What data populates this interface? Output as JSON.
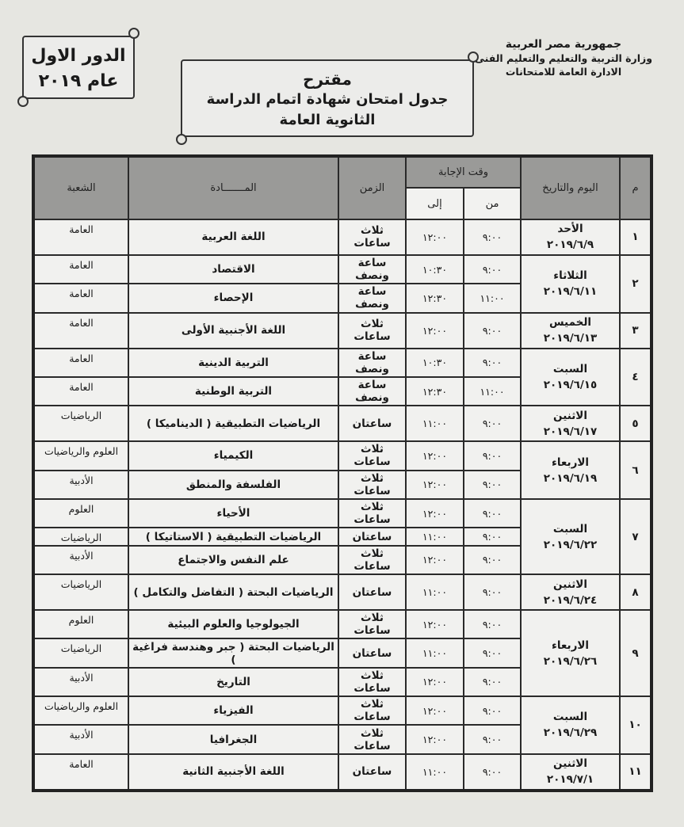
{
  "header": {
    "org_lines": [
      "جمهورية مصر العربية",
      "وزارة التربية والتعليم والتعليم الفنى",
      "الادارة العامة للامتحانات"
    ],
    "title_top": "مقترح",
    "title_line1": "جدول امتحان شهادة اتمام الدراسة",
    "title_line2": "الثانوية العامة",
    "session_line1": "الدور الاول",
    "session_line2": "عام ٢٠١٩"
  },
  "table_headers": {
    "num": "م",
    "day_date": "اليوم والتاريخ",
    "answer_time": "وقت الإجابة",
    "from": "من",
    "to": "إلى",
    "duration": "الزمن",
    "subject": "المـــــــادة",
    "branch": "الشعبة"
  },
  "days": [
    {
      "num": "١",
      "day": "الأحد",
      "date": "٢٠١٩/٦/٩",
      "rows": [
        {
          "from": "٩:٠٠",
          "to": "١٢:٠٠",
          "duration": "ثلاث ساعات",
          "subject": "اللغة العربية",
          "branch": "العامة"
        }
      ]
    },
    {
      "num": "٢",
      "day": "الثلاثاء",
      "date": "٢٠١٩/٦/١١",
      "rows": [
        {
          "from": "٩:٠٠",
          "to": "١٠:٣٠",
          "duration": "ساعة ونصف",
          "subject": "الاقتصاد",
          "branch": "العامة"
        },
        {
          "from": "١١:٠٠",
          "to": "١٢:٣٠",
          "duration": "ساعة ونصف",
          "subject": "الإحصاء",
          "branch": "العامة"
        }
      ]
    },
    {
      "num": "٣",
      "day": "الخميس",
      "date": "٢٠١٩/٦/١٣",
      "rows": [
        {
          "from": "٩:٠٠",
          "to": "١٢:٠٠",
          "duration": "ثلاث ساعات",
          "subject": "اللغة الأجنبية الأولى",
          "branch": "العامة"
        }
      ]
    },
    {
      "num": "٤",
      "day": "السبت",
      "date": "٢٠١٩/٦/١٥",
      "rows": [
        {
          "from": "٩:٠٠",
          "to": "١٠:٣٠",
          "duration": "ساعة ونصف",
          "subject": "التربية الدينية",
          "branch": "العامة"
        },
        {
          "from": "١١:٠٠",
          "to": "١٢:٣٠",
          "duration": "ساعة ونصف",
          "subject": "التربية الوطنية",
          "branch": "العامة"
        }
      ]
    },
    {
      "num": "٥",
      "day": "الاثنين",
      "date": "٢٠١٩/٦/١٧",
      "rows": [
        {
          "from": "٩:٠٠",
          "to": "١١:٠٠",
          "duration": "ساعتان",
          "subject": "الرياضيات التطبيقية ( الديناميكا )",
          "branch": "الرياضيات"
        }
      ]
    },
    {
      "num": "٦",
      "day": "الاربعاء",
      "date": "٢٠١٩/٦/١٩",
      "rows": [
        {
          "from": "٩:٠٠",
          "to": "١٢:٠٠",
          "duration": "ثلاث ساعات",
          "subject": "الكيمياء",
          "branch": "العلوم والرياضيات"
        },
        {
          "from": "٩:٠٠",
          "to": "١٢:٠٠",
          "duration": "ثلاث ساعات",
          "subject": "الفلسفة والمنطق",
          "branch": "الأدبية"
        }
      ]
    },
    {
      "num": "٧",
      "day": "السبت",
      "date": "٢٠١٩/٦/٢٢",
      "rows": [
        {
          "from": "٩:٠٠",
          "to": "١٢:٠٠",
          "duration": "ثلاث ساعات",
          "subject": "الأحياء",
          "branch": "العلوم"
        },
        {
          "from": "٩:٠٠",
          "to": "١١:٠٠",
          "duration": "ساعتان",
          "subject": "الرياضيات التطبيقية ( الاستاتيكا )",
          "branch": "الرياضيات"
        },
        {
          "from": "٩:٠٠",
          "to": "١٢:٠٠",
          "duration": "ثلاث ساعات",
          "subject": "علم النفس والاجتماع",
          "branch": "الأدبية"
        }
      ]
    },
    {
      "num": "٨",
      "day": "الاثنين",
      "date": "٢٠١٩/٦/٢٤",
      "rows": [
        {
          "from": "٩:٠٠",
          "to": "١١:٠٠",
          "duration": "ساعتان",
          "subject": "الرياضيات البحتة ( التفاضل والتكامل )",
          "branch": "الرياضيات"
        }
      ]
    },
    {
      "num": "٩",
      "day": "الاربعاء",
      "date": "٢٠١٩/٦/٢٦",
      "rows": [
        {
          "from": "٩:٠٠",
          "to": "١٢:٠٠",
          "duration": "ثلاث ساعات",
          "subject": "الجيولوجيا والعلوم البيئية",
          "branch": "العلوم"
        },
        {
          "from": "٩:٠٠",
          "to": "١١:٠٠",
          "duration": "ساعتان",
          "subject": "الرياضيات البحتة ( جبر وهندسة فراغية )",
          "branch": "الرياضيات"
        },
        {
          "from": "٩:٠٠",
          "to": "١٢:٠٠",
          "duration": "ثلاث ساعات",
          "subject": "التاريخ",
          "branch": "الأدبية"
        }
      ]
    },
    {
      "num": "١٠",
      "day": "السبت",
      "date": "٢٠١٩/٦/٢٩",
      "rows": [
        {
          "from": "٩:٠٠",
          "to": "١٢:٠٠",
          "duration": "ثلاث ساعات",
          "subject": "الفيزياء",
          "branch": "العلوم والرياضيات"
        },
        {
          "from": "٩:٠٠",
          "to": "١٢:٠٠",
          "duration": "ثلاث ساعات",
          "subject": "الجغرافيا",
          "branch": "الأدبية"
        }
      ]
    },
    {
      "num": "١١",
      "day": "الاثنين",
      "date": "٢٠١٩/٧/١",
      "rows": [
        {
          "from": "٩:٠٠",
          "to": "١١:٠٠",
          "duration": "ساعتان",
          "subject": "اللغة الأجنبية الثانية",
          "branch": "العامة"
        }
      ]
    }
  ]
}
